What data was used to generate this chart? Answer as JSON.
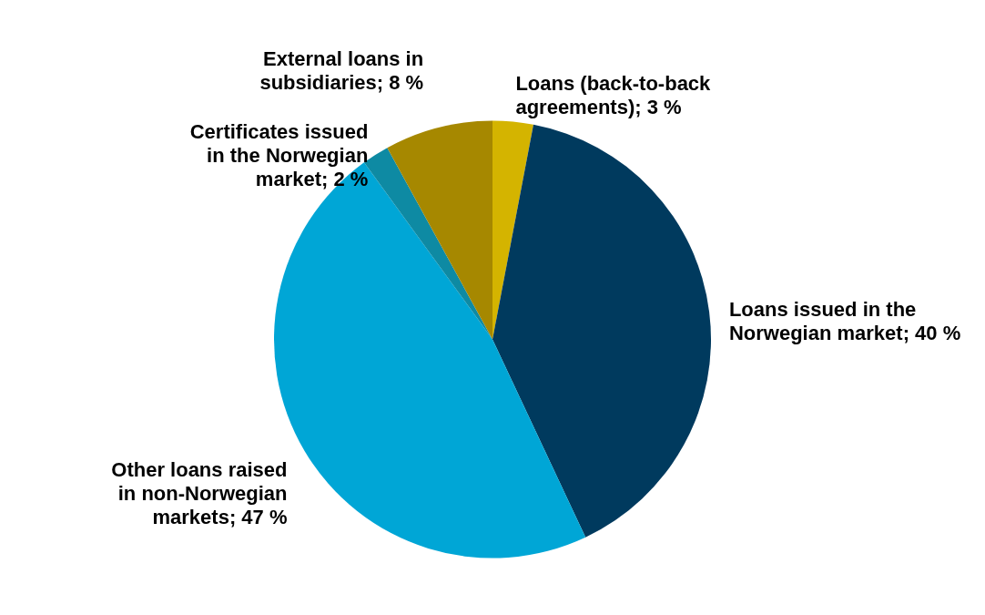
{
  "chart_data": {
    "type": "pie",
    "categories": [
      "Loans (back-to-back agreements)",
      "Loans issued in the Norwegian market",
      "Other loans raised in non-Norwegian markets",
      "Certificates issued in the Norwegian market",
      "External loans in subsidiaries"
    ],
    "values": [
      3,
      40,
      47,
      2,
      8
    ],
    "value_labels": [
      "3 %",
      "40 %",
      "47 %",
      "2 %",
      "8 %"
    ],
    "colors": [
      "#d4b400",
      "#003a5e",
      "#00a6d6",
      "#0e8aa3",
      "#a68800"
    ]
  }
}
